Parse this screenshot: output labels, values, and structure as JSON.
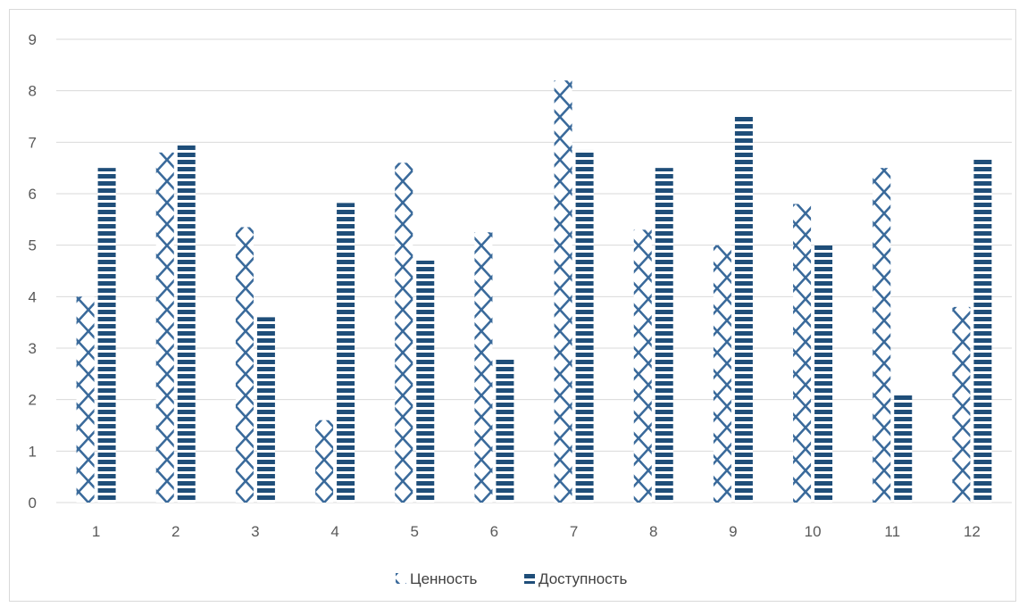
{
  "chart_data": {
    "type": "bar",
    "title": "",
    "xlabel": "",
    "ylabel": "",
    "categories": [
      "1",
      "2",
      "3",
      "4",
      "5",
      "6",
      "7",
      "8",
      "9",
      "10",
      "11",
      "12"
    ],
    "ylim": [
      0,
      9
    ],
    "yticks": [
      "0",
      "1",
      "2",
      "3",
      "4",
      "5",
      "6",
      "7",
      "8",
      "9"
    ],
    "grid": true,
    "legend_position": "bottom",
    "series": [
      {
        "name": "Ценность",
        "pattern": "diamond-lattice",
        "color": "#2e5b8a",
        "values": [
          4.0,
          6.8,
          5.35,
          1.6,
          6.6,
          5.25,
          8.2,
          5.3,
          5.0,
          5.8,
          6.5,
          3.8
        ]
      },
      {
        "name": "Доступность",
        "pattern": "horizontal-stripes",
        "color": "#1f4e79",
        "values": [
          6.5,
          6.95,
          3.6,
          5.82,
          4.7,
          2.78,
          6.85,
          6.5,
          7.5,
          5.0,
          2.1,
          6.7
        ]
      }
    ]
  }
}
